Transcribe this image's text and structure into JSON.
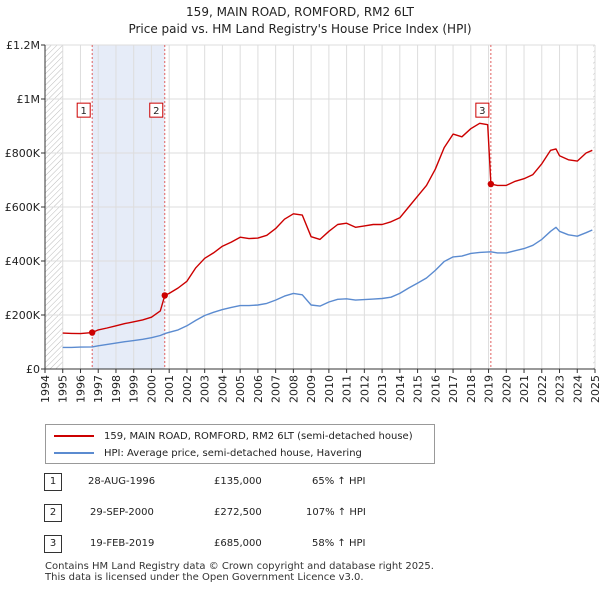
{
  "title_line1": "159, MAIN ROAD, ROMFORD, RM2 6LT",
  "title_line2": "Price paid vs. HM Land Registry's House Price Index (HPI)",
  "chart_data": {
    "type": "line",
    "title": "159, MAIN ROAD, ROMFORD, RM2 6LT — Price paid vs. HM Land Registry's House Price Index (HPI)",
    "xlim": [
      1994,
      2025
    ],
    "ylim": [
      0,
      1200000
    ],
    "x_ticks": [
      1994,
      1995,
      1996,
      1997,
      1998,
      1999,
      2000,
      2001,
      2002,
      2003,
      2004,
      2005,
      2006,
      2007,
      2008,
      2009,
      2010,
      2011,
      2012,
      2013,
      2014,
      2015,
      2016,
      2017,
      2018,
      2019,
      2020,
      2021,
      2022,
      2023,
      2024,
      2025
    ],
    "y_ticks": [
      0,
      200000,
      400000,
      600000,
      800000,
      1000000,
      1200000
    ],
    "y_tick_labels": [
      "£0",
      "£200K",
      "£400K",
      "£600K",
      "£800K",
      "£1M",
      "£1.2M"
    ],
    "grid": true,
    "hatch_regions": [
      [
        1994,
        1995.0
      ],
      [
        2024.9,
        2025
      ]
    ],
    "shaded_regions": [
      [
        1996.66,
        2000.75
      ]
    ],
    "series": [
      {
        "name": "159, MAIN ROAD, ROMFORD, RM2 6LT (semi-detached house)",
        "color": "#cc0000",
        "points": [
          [
            1995.0,
            133000
          ],
          [
            1995.5,
            132000
          ],
          [
            1996.0,
            131000
          ],
          [
            1996.66,
            135000
          ],
          [
            1997.0,
            145000
          ],
          [
            1997.5,
            152000
          ],
          [
            1998.0,
            160000
          ],
          [
            1998.5,
            168000
          ],
          [
            1999.0,
            175000
          ],
          [
            1999.5,
            182000
          ],
          [
            2000.0,
            192000
          ],
          [
            2000.5,
            215000
          ],
          [
            2000.75,
            272500
          ],
          [
            2001.0,
            280000
          ],
          [
            2001.5,
            300000
          ],
          [
            2002.0,
            325000
          ],
          [
            2002.5,
            375000
          ],
          [
            2003.0,
            410000
          ],
          [
            2003.5,
            430000
          ],
          [
            2004.0,
            455000
          ],
          [
            2004.5,
            470000
          ],
          [
            2005.0,
            488000
          ],
          [
            2005.5,
            483000
          ],
          [
            2006.0,
            485000
          ],
          [
            2006.5,
            495000
          ],
          [
            2007.0,
            520000
          ],
          [
            2007.5,
            555000
          ],
          [
            2008.0,
            575000
          ],
          [
            2008.5,
            570000
          ],
          [
            2009.0,
            490000
          ],
          [
            2009.5,
            480000
          ],
          [
            2010.0,
            510000
          ],
          [
            2010.5,
            535000
          ],
          [
            2011.0,
            540000
          ],
          [
            2011.5,
            525000
          ],
          [
            2012.0,
            530000
          ],
          [
            2012.5,
            535000
          ],
          [
            2013.0,
            535000
          ],
          [
            2013.5,
            545000
          ],
          [
            2014.0,
            560000
          ],
          [
            2014.5,
            600000
          ],
          [
            2015.0,
            640000
          ],
          [
            2015.5,
            680000
          ],
          [
            2016.0,
            740000
          ],
          [
            2016.5,
            820000
          ],
          [
            2017.0,
            870000
          ],
          [
            2017.5,
            860000
          ],
          [
            2018.0,
            890000
          ],
          [
            2018.5,
            910000
          ],
          [
            2018.95,
            905000
          ],
          [
            2019.13,
            685000
          ],
          [
            2019.5,
            680000
          ],
          [
            2020.0,
            680000
          ],
          [
            2020.5,
            695000
          ],
          [
            2021.0,
            705000
          ],
          [
            2021.5,
            720000
          ],
          [
            2022.0,
            760000
          ],
          [
            2022.5,
            810000
          ],
          [
            2022.8,
            815000
          ],
          [
            2023.0,
            790000
          ],
          [
            2023.5,
            775000
          ],
          [
            2024.0,
            770000
          ],
          [
            2024.5,
            800000
          ],
          [
            2024.85,
            810000
          ]
        ]
      },
      {
        "name": "HPI: Average price, semi-detached house, Havering",
        "color": "#5b8bd0",
        "points": [
          [
            1995.0,
            80000
          ],
          [
            1995.5,
            80000
          ],
          [
            1996.0,
            81000
          ],
          [
            1996.66,
            82000
          ],
          [
            1997.0,
            86000
          ],
          [
            1997.5,
            91000
          ],
          [
            1998.0,
            96000
          ],
          [
            1998.5,
            101000
          ],
          [
            1999.0,
            105000
          ],
          [
            1999.5,
            110000
          ],
          [
            2000.0,
            116000
          ],
          [
            2000.5,
            124000
          ],
          [
            2000.75,
            131000
          ],
          [
            2001.0,
            136000
          ],
          [
            2001.5,
            145000
          ],
          [
            2002.0,
            160000
          ],
          [
            2002.5,
            180000
          ],
          [
            2003.0,
            198000
          ],
          [
            2003.5,
            210000
          ],
          [
            2004.0,
            220000
          ],
          [
            2004.5,
            228000
          ],
          [
            2005.0,
            235000
          ],
          [
            2005.5,
            235000
          ],
          [
            2006.0,
            237000
          ],
          [
            2006.5,
            243000
          ],
          [
            2007.0,
            255000
          ],
          [
            2007.5,
            270000
          ],
          [
            2008.0,
            280000
          ],
          [
            2008.5,
            275000
          ],
          [
            2009.0,
            237000
          ],
          [
            2009.5,
            233000
          ],
          [
            2010.0,
            248000
          ],
          [
            2010.5,
            258000
          ],
          [
            2011.0,
            260000
          ],
          [
            2011.5,
            255000
          ],
          [
            2012.0,
            257000
          ],
          [
            2012.5,
            259000
          ],
          [
            2013.0,
            261000
          ],
          [
            2013.5,
            266000
          ],
          [
            2014.0,
            280000
          ],
          [
            2014.5,
            300000
          ],
          [
            2015.0,
            318000
          ],
          [
            2015.5,
            337000
          ],
          [
            2016.0,
            365000
          ],
          [
            2016.5,
            398000
          ],
          [
            2017.0,
            415000
          ],
          [
            2017.5,
            418000
          ],
          [
            2018.0,
            428000
          ],
          [
            2018.5,
            432000
          ],
          [
            2019.13,
            434000
          ],
          [
            2019.5,
            430000
          ],
          [
            2020.0,
            430000
          ],
          [
            2020.5,
            438000
          ],
          [
            2021.0,
            446000
          ],
          [
            2021.5,
            458000
          ],
          [
            2022.0,
            480000
          ],
          [
            2022.5,
            510000
          ],
          [
            2022.8,
            525000
          ],
          [
            2023.0,
            510000
          ],
          [
            2023.5,
            497000
          ],
          [
            2024.0,
            492000
          ],
          [
            2024.5,
            505000
          ],
          [
            2024.85,
            515000
          ]
        ]
      }
    ],
    "sale_points": [
      {
        "label": "1",
        "x": 1996.66,
        "y": 135000
      },
      {
        "label": "2",
        "x": 2000.75,
        "y": 272500
      },
      {
        "label": "3",
        "x": 2019.13,
        "y": 685000
      }
    ],
    "marker_box_y": 955000
  },
  "legend": {
    "property_label": "159, MAIN ROAD, ROMFORD, RM2 6LT (semi-detached house)",
    "hpi_label": "HPI: Average price, semi-detached house, Havering",
    "property_color": "#cc0000",
    "hpi_color": "#5b8bd0"
  },
  "sales": [
    {
      "num": "1",
      "date": "28-AUG-1996",
      "price": "£135,000",
      "hpi": "65% ↑ HPI"
    },
    {
      "num": "2",
      "date": "29-SEP-2000",
      "price": "£272,500",
      "hpi": "107% ↑ HPI"
    },
    {
      "num": "3",
      "date": "19-FEB-2019",
      "price": "£685,000",
      "hpi": "58% ↑ HPI"
    }
  ],
  "footer_line1": "Contains HM Land Registry data © Crown copyright and database right 2025.",
  "footer_line2": "This data is licensed under the Open Government Licence v3.0."
}
